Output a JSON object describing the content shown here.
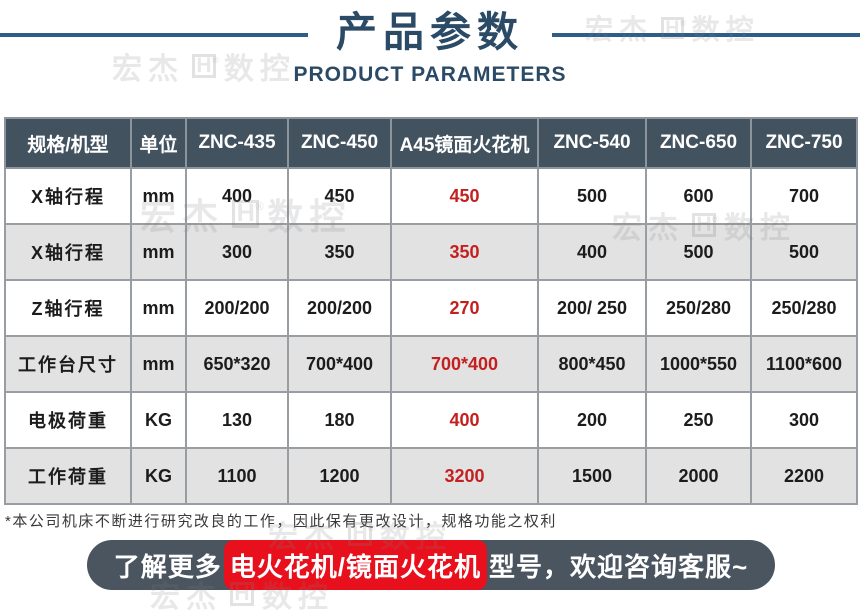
{
  "header": {
    "title": "产品参数",
    "subtitle": "PRODUCT PARAMETERS"
  },
  "watermark": {
    "left": "宏杰",
    "logo": "H",
    "right": "数控"
  },
  "table": {
    "columns": [
      "规格/机型",
      "单位",
      "ZNC-435",
      "ZNC-450",
      "A45镜面火花机",
      "ZNC-540",
      "ZNC-650",
      "ZNC-750"
    ],
    "highlight_column": "A45镜面火花机",
    "rows": [
      {
        "label": "X轴行程",
        "unit": "mm",
        "values": [
          "400",
          "450",
          "450",
          "500",
          "600",
          "700"
        ]
      },
      {
        "label": "X轴行程",
        "unit": "mm",
        "values": [
          "300",
          "350",
          "350",
          "400",
          "500",
          "500"
        ]
      },
      {
        "label": "Z轴行程",
        "unit": "mm",
        "values": [
          "200/200",
          "200/200",
          "270",
          "200/ 250",
          "250/280",
          "250/280"
        ]
      },
      {
        "label": "工作台尺寸",
        "unit": "mm",
        "values": [
          "650*320",
          "700*400",
          "700*400",
          "800*450",
          "1000*550",
          "1100*600"
        ]
      },
      {
        "label": "电极荷重",
        "unit": "KG",
        "values": [
          "130",
          "180",
          "400",
          "200",
          "250",
          "300"
        ]
      },
      {
        "label": "工作荷重",
        "unit": "KG",
        "values": [
          "1100",
          "1200",
          "3200",
          "1500",
          "2000",
          "2200"
        ]
      }
    ]
  },
  "footer_note": "*本公司机床不断进行研究改良的工作，因此保有更改设计，规格功能之权利",
  "banner": {
    "prefix": "了解更多",
    "highlight": "电火花机/镜面火花机",
    "suffix": "型号，欢迎咨询客服~"
  },
  "colors": {
    "title_navy": "#2b4a66",
    "title_line_blue": "#2e5e88",
    "table_header_bg": "#42525e",
    "row_alt_gray": "#e2e2e2",
    "highlight_red_text": "#c42020",
    "banner_bg": "#4a5560",
    "banner_red": "#e8101c"
  }
}
